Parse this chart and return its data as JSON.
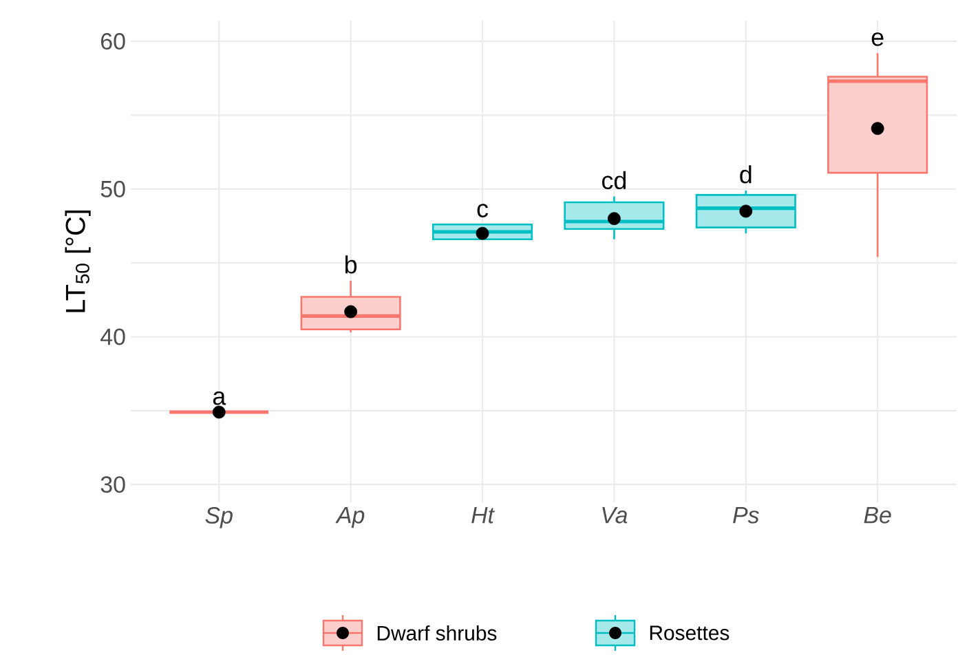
{
  "chart_data": {
    "type": "box",
    "ylabel": "LT$_{50}$ [°C]",
    "categories": [
      "Sp",
      "Ap",
      "Ht",
      "Va",
      "Ps",
      "Be"
    ],
    "series": [
      {
        "name": "Dwarf shrubs",
        "color": "#f8766d",
        "boxes": [
          {
            "low": 34.9,
            "q1": 34.9,
            "median": 34.9,
            "q3": 34.9,
            "high": 34.9,
            "mean": 34.9
          },
          {
            "low": 40.3,
            "q1": 40.5,
            "median": 41.4,
            "q3": 42.7,
            "high": 43.8,
            "mean": 41.7
          },
          null,
          null,
          null,
          {
            "low": 45.4,
            "q1": 51.1,
            "median": 57.3,
            "q3": 57.6,
            "high": 59.2,
            "mean": 54.1
          }
        ]
      },
      {
        "name": "Rosettes",
        "color": "#00bfc4",
        "boxes": [
          null,
          null,
          {
            "low": 46.6,
            "q1": 46.6,
            "median": 47.1,
            "q3": 47.6,
            "high": 47.6,
            "mean": 47.0
          },
          {
            "low": 46.6,
            "q1": 47.3,
            "median": 47.8,
            "q3": 49.1,
            "high": 49.5,
            "mean": 48.0
          },
          {
            "low": 47.0,
            "q1": 47.4,
            "median": 48.7,
            "q3": 49.6,
            "high": 49.9,
            "mean": 48.5
          },
          null
        ]
      }
    ],
    "annotations": [
      "a",
      "b",
      "c",
      "cd",
      "d",
      "e"
    ],
    "ylim": [
      28.8,
      61.4
    ],
    "yticks": [
      30,
      {
        "value": 35,
        "label": null
      },
      40,
      {
        "value": 45,
        "label": null
      },
      50,
      {
        "value": 55,
        "label": null
      },
      60
    ],
    "grid": true,
    "legend": "bottom"
  }
}
